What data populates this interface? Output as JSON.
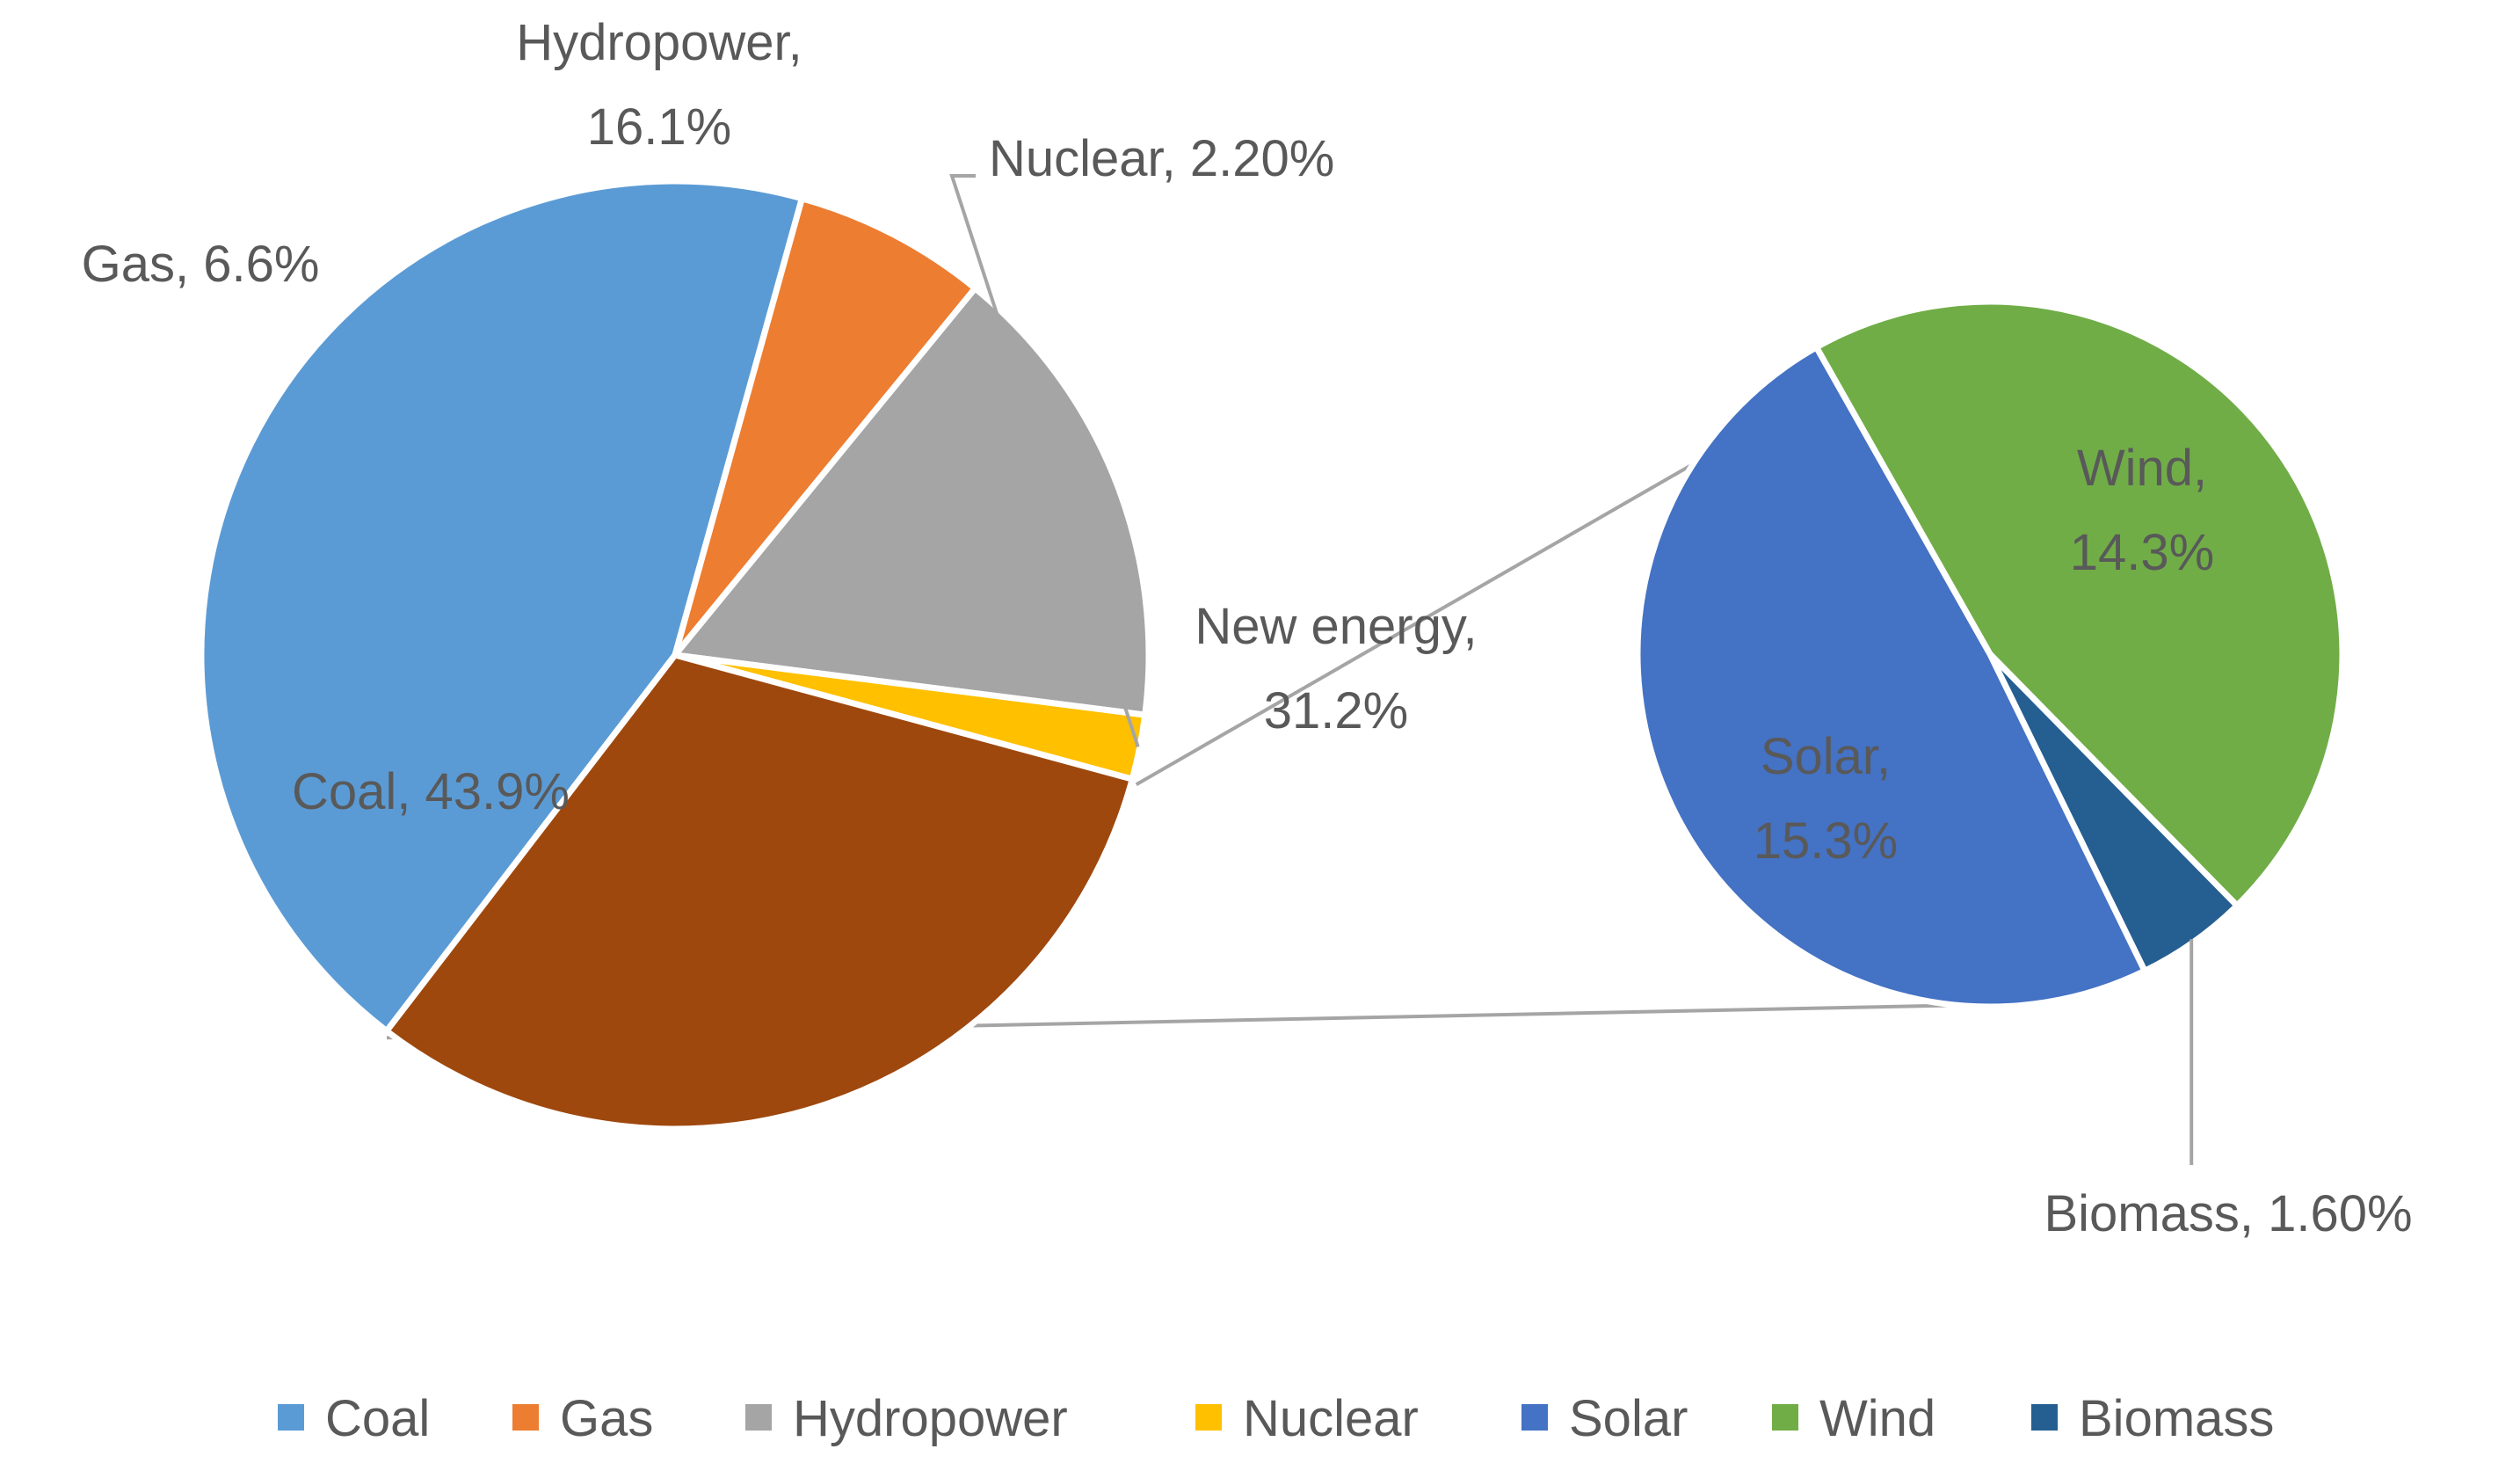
{
  "chart_data": {
    "type": "pie",
    "subtype": "pie-of-pie",
    "main_pie": {
      "slices": [
        {
          "name": "Coal",
          "value": 43.9,
          "label": "Coal, 43.9%",
          "color": "#5B9BD5"
        },
        {
          "name": "Gas",
          "value": 6.6,
          "label": "Gas, 6.6%",
          "color": "#ED7D31"
        },
        {
          "name": "Hydropower",
          "value": 16.1,
          "label": "Hydropower, 16.1%",
          "color": "#A5A5A5"
        },
        {
          "name": "Nuclear",
          "value": 2.2,
          "label": "Nuclear, 2.20%",
          "color": "#FFC000"
        },
        {
          "name": "New energy",
          "value": 31.2,
          "label": "New energy, 31.2%",
          "color": "#9E480E"
        }
      ]
    },
    "secondary_pie": {
      "slices": [
        {
          "name": "Wind",
          "value": 14.3,
          "label": "Wind, 14.3%",
          "color": "#70AD47"
        },
        {
          "name": "Biomass",
          "value": 1.6,
          "label": "Biomass, 1.60%",
          "color": "#255E91"
        },
        {
          "name": "Solar",
          "value": 15.3,
          "label": "Solar, 15.3%",
          "color": "#4472C4"
        }
      ]
    },
    "legend": {
      "position": "bottom",
      "items": [
        {
          "name": "Coal",
          "color": "#5B9BD5"
        },
        {
          "name": "Gas",
          "color": "#ED7D31"
        },
        {
          "name": "Hydropower",
          "color": "#A5A5A5"
        },
        {
          "name": "Nuclear",
          "color": "#FFC000"
        },
        {
          "name": "Solar",
          "color": "#4472C4"
        },
        {
          "name": "Wind",
          "color": "#70AD47"
        },
        {
          "name": "Biomass",
          "color": "#255E91"
        }
      ]
    },
    "connector_color": "#A5A5A5",
    "leader_color": "#A5A5A5"
  }
}
